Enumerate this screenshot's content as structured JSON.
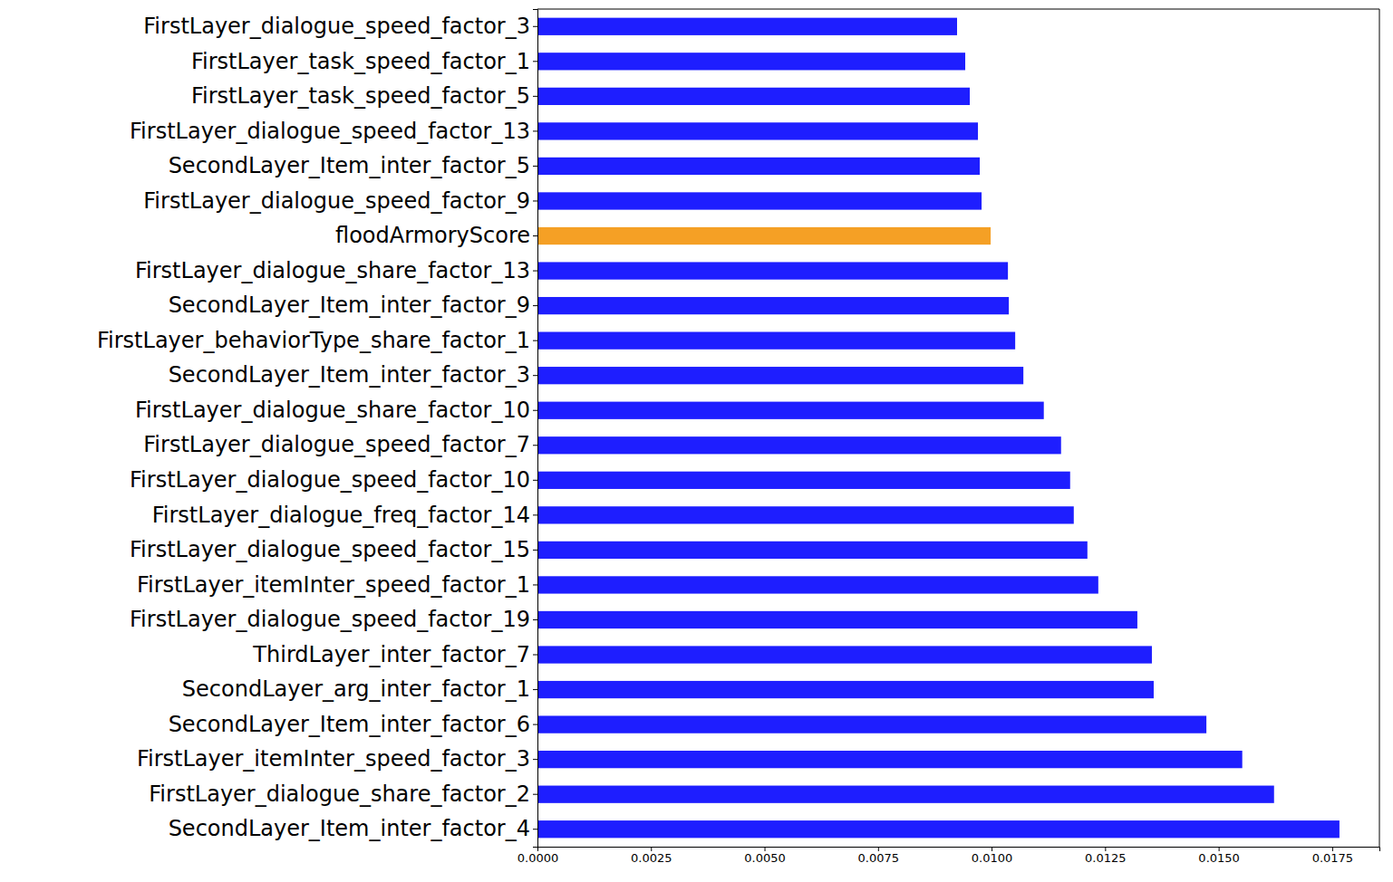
{
  "chart_data": {
    "type": "bar",
    "orientation": "horizontal",
    "categories": [
      "FirstLayer_dialogue_speed_factor_3",
      "FirstLayer_task_speed_factor_1",
      "FirstLayer_task_speed_factor_5",
      "FirstLayer_dialogue_speed_factor_13",
      "SecondLayer_Item_inter_factor_5",
      "FirstLayer_dialogue_speed_factor_9",
      "floodArmoryScore",
      "FirstLayer_dialogue_share_factor_13",
      "SecondLayer_Item_inter_factor_9",
      "FirstLayer_behaviorType_share_factor_1",
      "SecondLayer_Item_inter_factor_3",
      "FirstLayer_dialogue_share_factor_10",
      "FirstLayer_dialogue_speed_factor_7",
      "FirstLayer_dialogue_speed_factor_10",
      "FirstLayer_dialogue_freq_factor_14",
      "FirstLayer_dialogue_speed_factor_15",
      "FirstLayer_itemInter_speed_factor_1",
      "FirstLayer_dialogue_speed_factor_19",
      "ThirdLayer_inter_factor_7",
      "SecondLayer_arg_inter_factor_1",
      "SecondLayer_Item_inter_factor_6",
      "FirstLayer_itemInter_speed_factor_3",
      "FirstLayer_dialogue_share_factor_2",
      "SecondLayer_Item_inter_factor_4"
    ],
    "values": [
      0.00924,
      0.00942,
      0.00952,
      0.0097,
      0.00974,
      0.00978,
      0.00998,
      0.01036,
      0.01038,
      0.01052,
      0.0107,
      0.01115,
      0.01153,
      0.01173,
      0.01181,
      0.01211,
      0.01235,
      0.01321,
      0.01353,
      0.01357,
      0.01473,
      0.01552,
      0.01622,
      0.01766
    ],
    "colors": [
      "#1e1eff",
      "#1e1eff",
      "#1e1eff",
      "#1e1eff",
      "#1e1eff",
      "#1e1eff",
      "#f5a025",
      "#1e1eff",
      "#1e1eff",
      "#1e1eff",
      "#1e1eff",
      "#1e1eff",
      "#1e1eff",
      "#1e1eff",
      "#1e1eff",
      "#1e1eff",
      "#1e1eff",
      "#1e1eff",
      "#1e1eff",
      "#1e1eff",
      "#1e1eff",
      "#1e1eff",
      "#1e1eff",
      "#1e1eff"
    ],
    "xlim": [
      0,
      0.01854
    ],
    "xticks": [
      {
        "value": 0,
        "label": "0.0000"
      },
      {
        "value": 0.0025,
        "label": "0.0025"
      },
      {
        "value": 0.005,
        "label": "0.0050"
      },
      {
        "value": 0.0075,
        "label": "0.0075"
      },
      {
        "value": 0.01,
        "label": "0.0100"
      },
      {
        "value": 0.0125,
        "label": "0.0125"
      },
      {
        "value": 0.015,
        "label": "0.0150"
      },
      {
        "value": 0.0175,
        "label": "0.0175"
      }
    ],
    "grid": false
  }
}
